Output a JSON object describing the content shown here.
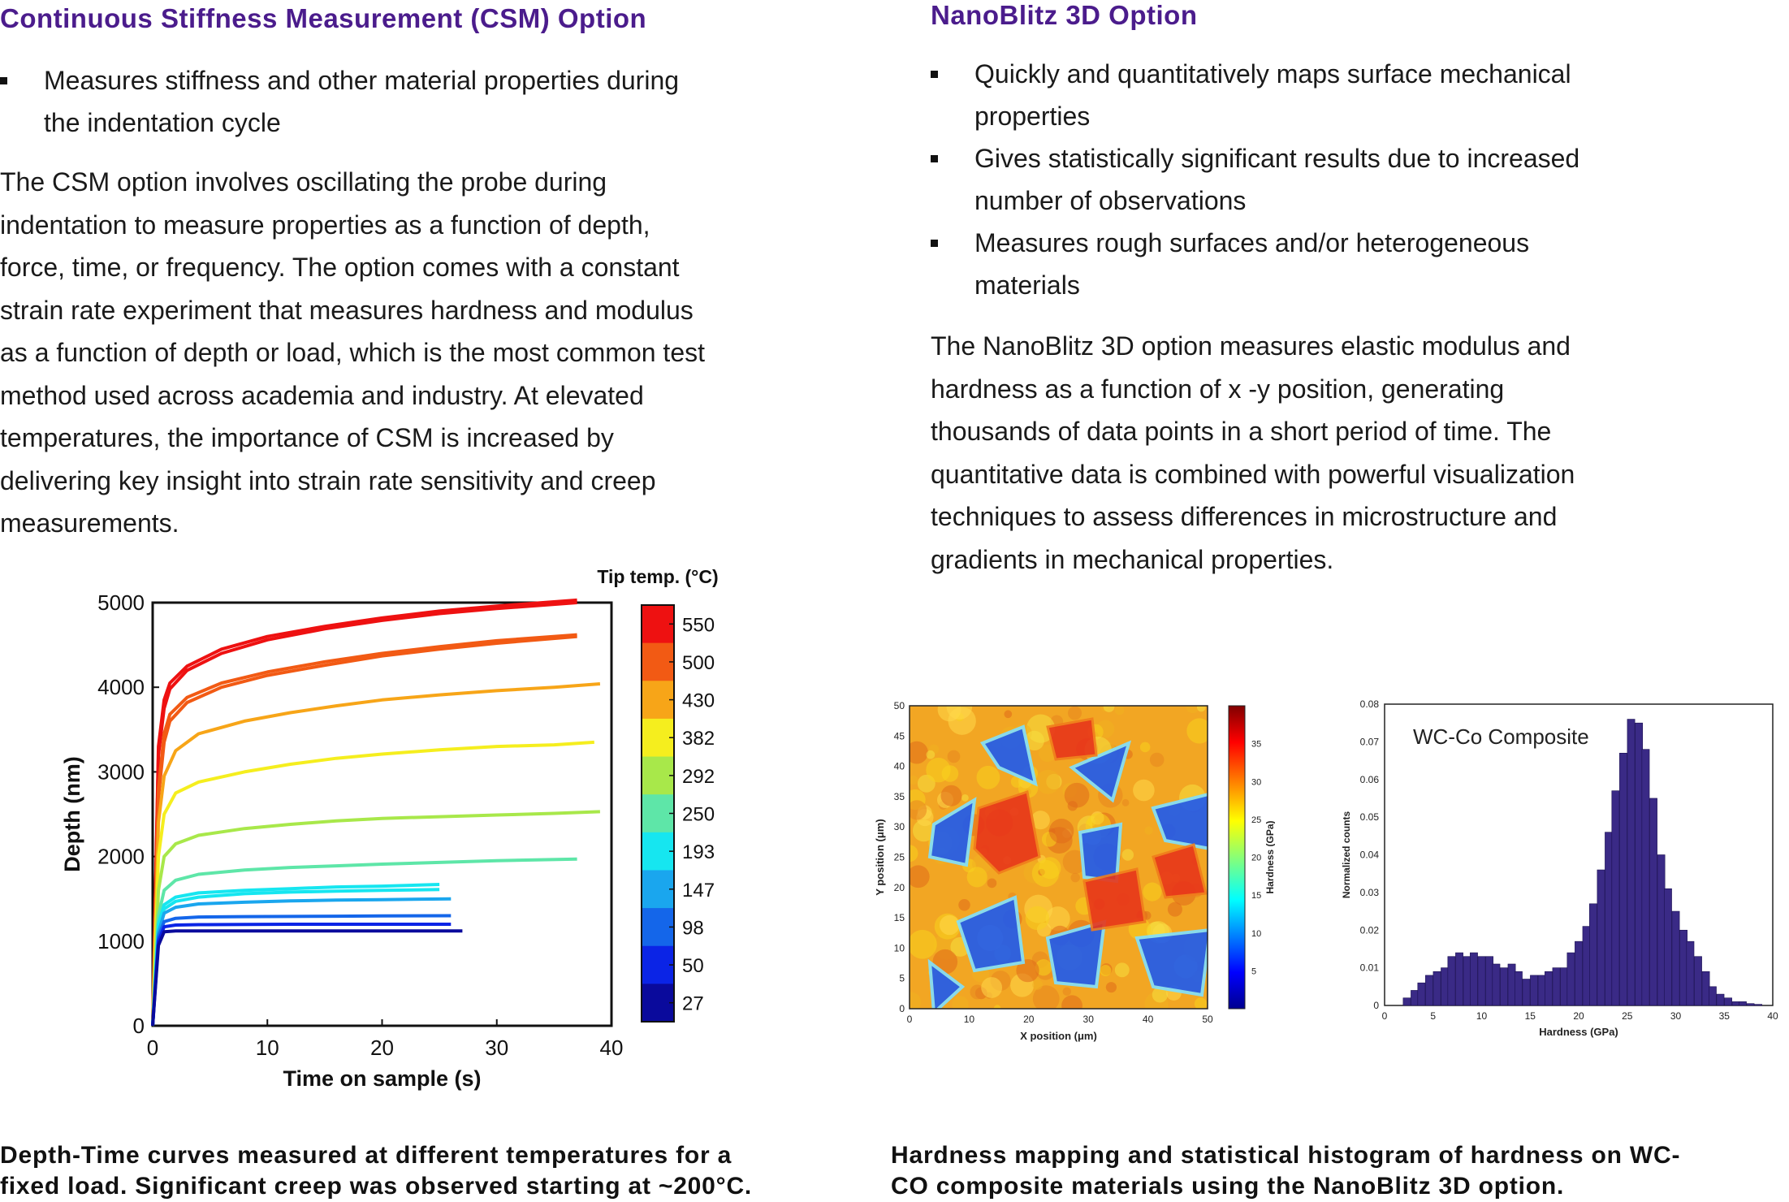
{
  "left": {
    "heading": "Continuous Stiffness Measurement (CSM) Option",
    "bullets": [
      "Measures stiffness and other material properties during the indentation cycle"
    ],
    "paragraph": "The CSM option involves oscillating the probe during indentation to measure properties as a function of depth, force, time, or frequency. The option comes with a constant strain rate experiment that measures hardness and modulus as a function of depth or load, which is the most common test method used across academia and industry. At elevated temperatures, the importance of CSM is increased by delivering key insight into strain rate sensitivity and creep measurements.",
    "caption": "Depth-Time curves measured at different temperatures for a fixed load. Significant creep was observed starting at ~200°C."
  },
  "right": {
    "heading": "NanoBlitz 3D Option",
    "bullets": [
      "Quickly and quantitatively maps surface mechanical properties",
      "Gives statistically significant results due to increased number of observations",
      "Measures rough surfaces and/or heterogeneous materials"
    ],
    "paragraph": "The NanoBlitz 3D option measures elastic modulus and hardness as a function of x -y position, generating thousands of data points in a short period of time. The quantitative data is combined with powerful visualization techniques to assess differences in microstructure and gradients in mechanical properties.",
    "caption": "Hardness mapping and statistical histogram of hardness on WC-CO composite materials using the NanoBlitz 3D option."
  },
  "chart_data": [
    {
      "type": "line",
      "xlabel": "Time on sample (s)",
      "ylabel": "Depth (nm)",
      "xlim": [
        0,
        40
      ],
      "ylim": [
        0,
        5000
      ],
      "xticks": [
        0,
        10,
        20,
        30,
        40
      ],
      "yticks": [
        0,
        1000,
        2000,
        3000,
        4000,
        5000
      ],
      "colorbar_title": "Tip temp. (°C)",
      "colorbar_labels": [
        "550",
        "500",
        "430",
        "382",
        "292",
        "250",
        "193",
        "147",
        "98",
        "50",
        "27"
      ],
      "colorbar_colors": [
        "#ee1111",
        "#f25a14",
        "#f7a518",
        "#f5ee1e",
        "#a8e84a",
        "#5ee6a8",
        "#16e6f0",
        "#1aa6ee",
        "#1466ea",
        "#0b24e6",
        "#0a0a9c"
      ],
      "series": [
        {
          "temp": 550,
          "color": "#ee1111",
          "x": [
            0,
            0.5,
            1,
            1.5,
            3,
            6,
            10,
            15,
            20,
            25,
            30,
            37
          ],
          "y": [
            0,
            3300,
            3850,
            4050,
            4250,
            4450,
            4600,
            4720,
            4820,
            4900,
            4960,
            5030
          ]
        },
        {
          "temp": 550,
          "color": "#ee1111",
          "x": [
            0,
            0.5,
            1,
            1.5,
            3,
            6,
            10,
            15,
            20,
            25,
            30,
            37
          ],
          "y": [
            0,
            3200,
            3750,
            3980,
            4200,
            4400,
            4560,
            4690,
            4790,
            4870,
            4930,
            5000
          ]
        },
        {
          "temp": 500,
          "color": "#f25a14",
          "x": [
            0,
            0.5,
            1,
            1.5,
            3,
            6,
            10,
            15,
            20,
            25,
            30,
            37
          ],
          "y": [
            0,
            2800,
            3450,
            3680,
            3880,
            4050,
            4180,
            4300,
            4400,
            4480,
            4550,
            4620
          ]
        },
        {
          "temp": 500,
          "color": "#f25a14",
          "x": [
            0,
            0.5,
            1,
            1.5,
            3,
            6,
            10,
            15,
            20,
            25,
            30,
            37
          ],
          "y": [
            0,
            2700,
            3350,
            3600,
            3820,
            4000,
            4140,
            4260,
            4370,
            4450,
            4520,
            4600
          ]
        },
        {
          "temp": 430,
          "color": "#f7a518",
          "x": [
            0,
            0.5,
            1,
            2,
            4,
            8,
            12,
            16,
            20,
            25,
            30,
            35,
            39
          ],
          "y": [
            0,
            2400,
            2950,
            3250,
            3450,
            3600,
            3700,
            3780,
            3850,
            3910,
            3960,
            4000,
            4040
          ]
        },
        {
          "temp": 382,
          "color": "#f5ee1e",
          "x": [
            0,
            0.5,
            1,
            2,
            4,
            8,
            12,
            16,
            20,
            25,
            30,
            35,
            38.5
          ],
          "y": [
            0,
            2000,
            2500,
            2750,
            2880,
            3000,
            3090,
            3160,
            3210,
            3260,
            3300,
            3320,
            3350
          ]
        },
        {
          "temp": 292,
          "color": "#a8e84a",
          "x": [
            0,
            0.5,
            1,
            2,
            4,
            8,
            12,
            16,
            20,
            25,
            30,
            35,
            39
          ],
          "y": [
            0,
            1600,
            2000,
            2150,
            2250,
            2330,
            2380,
            2420,
            2450,
            2470,
            2490,
            2510,
            2530
          ]
        },
        {
          "temp": 250,
          "color": "#5ee6a8",
          "x": [
            0,
            0.5,
            1,
            2,
            4,
            8,
            12,
            16,
            20,
            25,
            30,
            37
          ],
          "y": [
            0,
            1300,
            1600,
            1720,
            1790,
            1840,
            1870,
            1890,
            1910,
            1930,
            1950,
            1970
          ]
        },
        {
          "temp": 193,
          "color": "#16e6f0",
          "x": [
            0,
            0.5,
            1,
            2,
            4,
            8,
            12,
            16,
            20,
            25
          ],
          "y": [
            0,
            1200,
            1430,
            1520,
            1570,
            1600,
            1620,
            1640,
            1650,
            1670
          ]
        },
        {
          "temp": 193,
          "color": "#16e6f0",
          "x": [
            0,
            0.5,
            1,
            2,
            4,
            8,
            12,
            16,
            20,
            25
          ],
          "y": [
            0,
            1150,
            1380,
            1470,
            1520,
            1560,
            1580,
            1590,
            1600,
            1610
          ]
        },
        {
          "temp": 147,
          "color": "#1aa6ee",
          "x": [
            0,
            0.5,
            1,
            2,
            4,
            8,
            12,
            16,
            20,
            26
          ],
          "y": [
            0,
            1100,
            1330,
            1400,
            1440,
            1460,
            1475,
            1485,
            1490,
            1500
          ]
        },
        {
          "temp": 98,
          "color": "#1466ea",
          "x": [
            0,
            0.5,
            1,
            2,
            4,
            8,
            12,
            16,
            20,
            26
          ],
          "y": [
            0,
            1050,
            1230,
            1270,
            1285,
            1290,
            1292,
            1295,
            1298,
            1300
          ]
        },
        {
          "temp": 50,
          "color": "#0b24e6",
          "x": [
            0,
            0.5,
            1,
            2,
            4,
            8,
            12,
            16,
            20,
            26
          ],
          "y": [
            0,
            1000,
            1170,
            1190,
            1195,
            1198,
            1200,
            1200,
            1200,
            1200
          ]
        },
        {
          "temp": 27,
          "color": "#0a0a9c",
          "x": [
            0,
            0.5,
            1,
            2,
            4,
            8,
            12,
            16,
            20,
            27
          ],
          "y": [
            0,
            950,
            1110,
            1120,
            1120,
            1120,
            1120,
            1120,
            1120,
            1120
          ]
        }
      ]
    },
    {
      "type": "heatmap",
      "xlabel": "X position (μm)",
      "ylabel": "Y position (μm)",
      "xlim": [
        0,
        50
      ],
      "ylim": [
        0,
        50
      ],
      "xticks": [
        0,
        10,
        20,
        30,
        40,
        50
      ],
      "yticks": [
        0,
        5,
        10,
        15,
        20,
        25,
        30,
        35,
        40,
        45,
        50
      ],
      "colorbar_title": "Hardness (GPa)",
      "colorbar_ticks": [
        5,
        10,
        15,
        20,
        25,
        30,
        35
      ],
      "colorbar_range": [
        0,
        40
      ]
    },
    {
      "type": "bar",
      "title": "WC-Co Composite",
      "xlabel": "Hardness (GPa)",
      "ylabel": "Normalized counts",
      "xlim": [
        0,
        40
      ],
      "ylim": [
        0,
        0.08
      ],
      "xticks": [
        0,
        5,
        10,
        15,
        20,
        25,
        30,
        35,
        40
      ],
      "yticks": [
        0,
        0.01,
        0.02,
        0.03,
        0.04,
        0.05,
        0.06,
        0.07,
        0.08
      ],
      "bar_color": "#3a2a86",
      "bin_width": 0.77,
      "x": [
        2.3,
        3.1,
        3.8,
        4.6,
        5.4,
        6.2,
        6.9,
        7.7,
        8.5,
        9.2,
        10.0,
        10.8,
        11.5,
        12.3,
        13.1,
        13.8,
        14.6,
        15.4,
        16.2,
        16.9,
        17.7,
        18.5,
        19.2,
        20.0,
        20.8,
        21.5,
        22.3,
        23.1,
        23.8,
        24.6,
        25.4,
        26.2,
        26.9,
        27.7,
        28.5,
        29.2,
        30.0,
        30.8,
        31.5,
        32.3,
        33.1,
        33.8,
        34.6,
        35.4,
        36.2,
        36.9,
        37.7,
        38.5
      ],
      "values": [
        0.002,
        0.004,
        0.006,
        0.008,
        0.009,
        0.01,
        0.013,
        0.014,
        0.013,
        0.014,
        0.013,
        0.013,
        0.011,
        0.01,
        0.011,
        0.009,
        0.007,
        0.008,
        0.008,
        0.009,
        0.01,
        0.01,
        0.014,
        0.017,
        0.021,
        0.027,
        0.036,
        0.046,
        0.057,
        0.067,
        0.076,
        0.075,
        0.068,
        0.055,
        0.04,
        0.031,
        0.025,
        0.02,
        0.017,
        0.013,
        0.009,
        0.005,
        0.003,
        0.002,
        0.001,
        0.001,
        0.0005,
        0.0003
      ]
    }
  ]
}
